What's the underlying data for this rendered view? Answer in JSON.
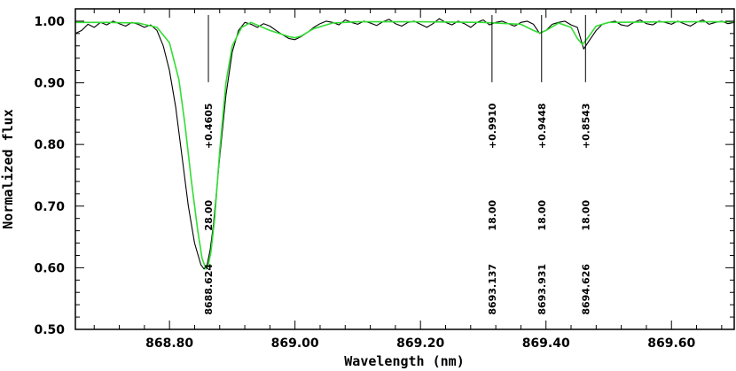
{
  "chart_data": {
    "type": "line",
    "xlabel": "Wavelength (nm)",
    "ylabel": "Normalized flux",
    "xlim": [
      868.65,
      869.7
    ],
    "ylim": [
      0.5,
      1.02
    ],
    "x_ticks": [
      868.8,
      869.0,
      869.2,
      869.4,
      869.6
    ],
    "x_tick_labels": [
      "868.80",
      "869.00",
      "869.20",
      "869.40",
      "869.60"
    ],
    "y_ticks": [
      0.5,
      0.6,
      0.7,
      0.8,
      0.9,
      1.0
    ],
    "y_tick_labels": [
      "0.50",
      "0.60",
      "0.70",
      "0.80",
      "0.90",
      "1.00"
    ],
    "grid": false,
    "series": [
      {
        "style": "observed",
        "color": "#000000",
        "x": [
          868.65,
          868.66,
          868.67,
          868.68,
          868.69,
          868.7,
          868.71,
          868.72,
          868.73,
          868.74,
          868.75,
          868.76,
          868.77,
          868.78,
          868.79,
          868.8,
          868.81,
          868.82,
          868.83,
          868.84,
          868.85,
          868.855,
          868.86,
          868.865,
          868.87,
          868.88,
          868.89,
          868.9,
          868.91,
          868.92,
          868.93,
          868.94,
          868.95,
          868.96,
          868.97,
          868.98,
          868.99,
          869.0,
          869.01,
          869.02,
          869.03,
          869.04,
          869.05,
          869.06,
          869.07,
          869.08,
          869.09,
          869.1,
          869.11,
          869.12,
          869.13,
          869.14,
          869.15,
          869.16,
          869.17,
          869.18,
          869.19,
          869.2,
          869.21,
          869.22,
          869.23,
          869.24,
          869.25,
          869.26,
          869.27,
          869.28,
          869.29,
          869.3,
          869.31,
          869.32,
          869.33,
          869.34,
          869.35,
          869.36,
          869.37,
          869.38,
          869.39,
          869.4,
          869.41,
          869.42,
          869.43,
          869.44,
          869.45,
          869.46,
          869.47,
          869.48,
          869.49,
          869.5,
          869.51,
          869.52,
          869.53,
          869.54,
          869.55,
          869.56,
          869.57,
          869.58,
          869.59,
          869.6,
          869.61,
          869.62,
          869.63,
          869.64,
          869.65,
          869.66,
          869.67,
          869.68,
          869.69,
          869.7
        ],
        "y": [
          0.98,
          0.985,
          0.995,
          0.99,
          0.998,
          0.994,
          1.0,
          0.996,
          0.992,
          0.998,
          0.995,
          0.99,
          0.994,
          0.985,
          0.96,
          0.92,
          0.86,
          0.78,
          0.7,
          0.64,
          0.605,
          0.598,
          0.605,
          0.63,
          0.67,
          0.78,
          0.88,
          0.95,
          0.985,
          0.998,
          0.995,
          0.99,
          0.996,
          0.992,
          0.985,
          0.978,
          0.972,
          0.97,
          0.975,
          0.982,
          0.99,
          0.996,
          1.0,
          0.998,
          0.994,
          1.002,
          0.998,
          0.995,
          1.0,
          0.997,
          0.993,
          0.999,
          1.003,
          0.996,
          0.992,
          0.998,
          1.0,
          0.995,
          0.99,
          0.996,
          1.004,
          0.998,
          0.994,
          1.0,
          0.996,
          0.99,
          0.998,
          1.002,
          0.994,
          0.998,
          1.0,
          0.996,
          0.992,
          0.998,
          1.0,
          0.995,
          0.98,
          0.985,
          0.995,
          0.998,
          1.0,
          0.994,
          0.99,
          0.955,
          0.97,
          0.985,
          0.995,
          0.998,
          1.0,
          0.994,
          0.992,
          0.998,
          1.002,
          0.996,
          0.994,
          1.0,
          0.998,
          0.995,
          1.0,
          0.996,
          0.992,
          0.998,
          1.002,
          0.995,
          0.998,
          1.0,
          0.996,
          0.998
        ]
      },
      {
        "style": "model",
        "color": "#33dd33",
        "x": [
          868.65,
          868.7,
          868.75,
          868.78,
          868.8,
          868.815,
          868.825,
          868.835,
          868.845,
          868.852,
          868.858,
          868.862,
          868.866,
          868.872,
          868.88,
          868.89,
          868.9,
          868.915,
          868.93,
          868.96,
          868.99,
          869.0,
          869.01,
          869.03,
          869.06,
          869.1,
          869.2,
          869.3,
          869.36,
          869.38,
          869.39,
          869.4,
          869.42,
          869.44,
          869.45,
          869.458,
          869.466,
          869.48,
          869.5,
          869.6,
          869.7
        ],
        "y": [
          0.998,
          0.998,
          0.997,
          0.99,
          0.965,
          0.905,
          0.83,
          0.74,
          0.66,
          0.615,
          0.598,
          0.605,
          0.625,
          0.68,
          0.79,
          0.9,
          0.96,
          0.99,
          0.998,
          0.985,
          0.975,
          0.973,
          0.976,
          0.988,
          0.997,
          0.999,
          0.999,
          0.998,
          0.995,
          0.985,
          0.981,
          0.985,
          0.997,
          0.99,
          0.972,
          0.962,
          0.972,
          0.992,
          0.998,
          0.999,
          0.999
        ]
      }
    ],
    "line_markers": [
      {
        "x": 868.862,
        "wavelength": "8688.624",
        "width": "28.00",
        "value": "+0.4605"
      },
      {
        "x": 869.314,
        "wavelength": "8693.137",
        "width": "18.00",
        "value": "+0.9910"
      },
      {
        "x": 869.393,
        "wavelength": "8693.931",
        "width": "18.00",
        "value": "+0.9448"
      },
      {
        "x": 869.463,
        "wavelength": "8694.626",
        "width": "18.00",
        "value": "+0.8543"
      }
    ]
  }
}
